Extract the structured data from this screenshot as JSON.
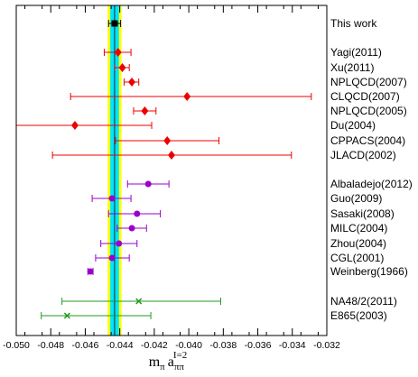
{
  "chart_data": {
    "type": "scatter",
    "title": "",
    "xlabel": "m_π a_ππ^{I=2}",
    "xlabel_parts": {
      "main": "m",
      "sub1": "π",
      "mid": "a",
      "sub2": "ππ",
      "sup": "I=2"
    },
    "ylabel": "",
    "xlim": [
      -0.05,
      -0.032
    ],
    "xticks": [
      "-0.050",
      "-0.048",
      "-0.046",
      "-0.044",
      "-0.042",
      "-0.040",
      "-0.038",
      "-0.036",
      "-0.034",
      "-0.032"
    ],
    "grid": false,
    "band": {
      "center": -0.0443,
      "inner": [
        -0.04455,
        -0.04405
      ],
      "outer": [
        -0.0447,
        -0.0439
      ]
    },
    "series": [
      {
        "group": "this_work",
        "color": "#000000",
        "marker": "square",
        "points": [
          {
            "label": "This work",
            "value": -0.0443,
            "lo": -0.04465,
            "hi": -0.04395
          }
        ]
      },
      {
        "group": "lattice",
        "color": "#ee0000",
        "marker": "diamond",
        "points": [
          {
            "label": "Yagi(2011)",
            "value": -0.0441,
            "lo": -0.0449,
            "hi": -0.04335
          },
          {
            "label": "Xu(2011)",
            "value": -0.04385,
            "lo": -0.0443,
            "hi": -0.04345
          },
          {
            "label": "NPLQCD(2007)",
            "value": -0.0433,
            "lo": -0.04375,
            "hi": -0.0429
          },
          {
            "label": "CLQCD(2007)",
            "value": -0.0401,
            "lo": -0.04685,
            "hi": -0.0329
          },
          {
            "label": "NPLQCD(2005)",
            "value": -0.04255,
            "lo": -0.0432,
            "hi": -0.0419
          },
          {
            "label": "Du(2004)",
            "value": -0.0466,
            "lo": -0.05,
            "hi": -0.04215
          },
          {
            "label": "CPPACS(2004)",
            "value": -0.04125,
            "lo": -0.04425,
            "hi": -0.03825
          },
          {
            "label": "JLACD(2002)",
            "value": -0.041,
            "lo": -0.0479,
            "hi": -0.03405
          }
        ]
      },
      {
        "group": "theory",
        "color": "#9900cc",
        "marker": "circle",
        "points": [
          {
            "label": "Albaladejo(2012)",
            "value": -0.04235,
            "lo": -0.04355,
            "hi": -0.04115
          },
          {
            "label": "Guo(2009)",
            "value": -0.04445,
            "lo": -0.0456,
            "hi": -0.04335
          },
          {
            "label": "Sasaki(2008)",
            "value": -0.043,
            "lo": -0.04465,
            "hi": -0.04165
          },
          {
            "label": "MILC(2004)",
            "value": -0.0433,
            "lo": -0.04415,
            "hi": -0.04245
          },
          {
            "label": "Zhou(2004)",
            "value": -0.04405,
            "lo": -0.0451,
            "hi": -0.043
          },
          {
            "label": "CGL(2001)",
            "value": -0.04445,
            "lo": -0.0454,
            "hi": -0.04345
          },
          {
            "label": "Weinberg(1966)",
            "value": -0.0457,
            "lo": -0.04585,
            "hi": -0.04555
          }
        ]
      },
      {
        "group": "experiment",
        "color": "#229922",
        "marker": "cross",
        "points": [
          {
            "label": "NA48/2(2011)",
            "value": -0.0429,
            "lo": -0.04735,
            "hi": -0.03815
          },
          {
            "label": "E865(2003)",
            "value": -0.04705,
            "lo": -0.04855,
            "hi": -0.0422
          }
        ]
      }
    ]
  }
}
